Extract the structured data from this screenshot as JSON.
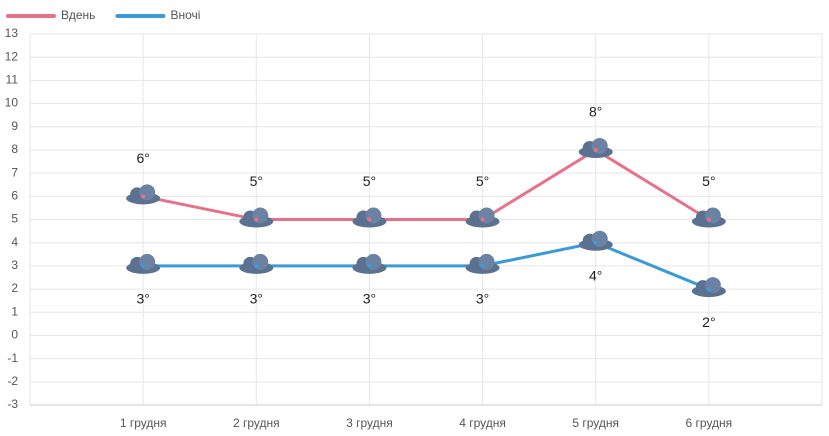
{
  "chart_data": {
    "type": "line",
    "categories": [
      "1 грудня",
      "2 грудня",
      "3 грудня",
      "4 грудня",
      "5 грудня",
      "6 грудня"
    ],
    "series": [
      {
        "name": "Вдень",
        "color": "#e8718a",
        "values": [
          6,
          5,
          5,
          5,
          8,
          5
        ],
        "value_labels": [
          "6°",
          "5°",
          "5°",
          "5°",
          "8°",
          "5°"
        ]
      },
      {
        "name": "Вночі",
        "color": "#3b9ad9",
        "values": [
          3,
          3,
          3,
          3,
          4,
          2
        ],
        "value_labels": [
          "3°",
          "3°",
          "3°",
          "3°",
          "4°",
          "2°"
        ]
      }
    ],
    "ylim": [
      -3,
      13
    ],
    "yticks": [
      -3,
      -2,
      -1,
      0,
      1,
      2,
      3,
      4,
      5,
      6,
      7,
      8,
      9,
      10,
      11,
      12,
      13
    ],
    "grid": true
  }
}
